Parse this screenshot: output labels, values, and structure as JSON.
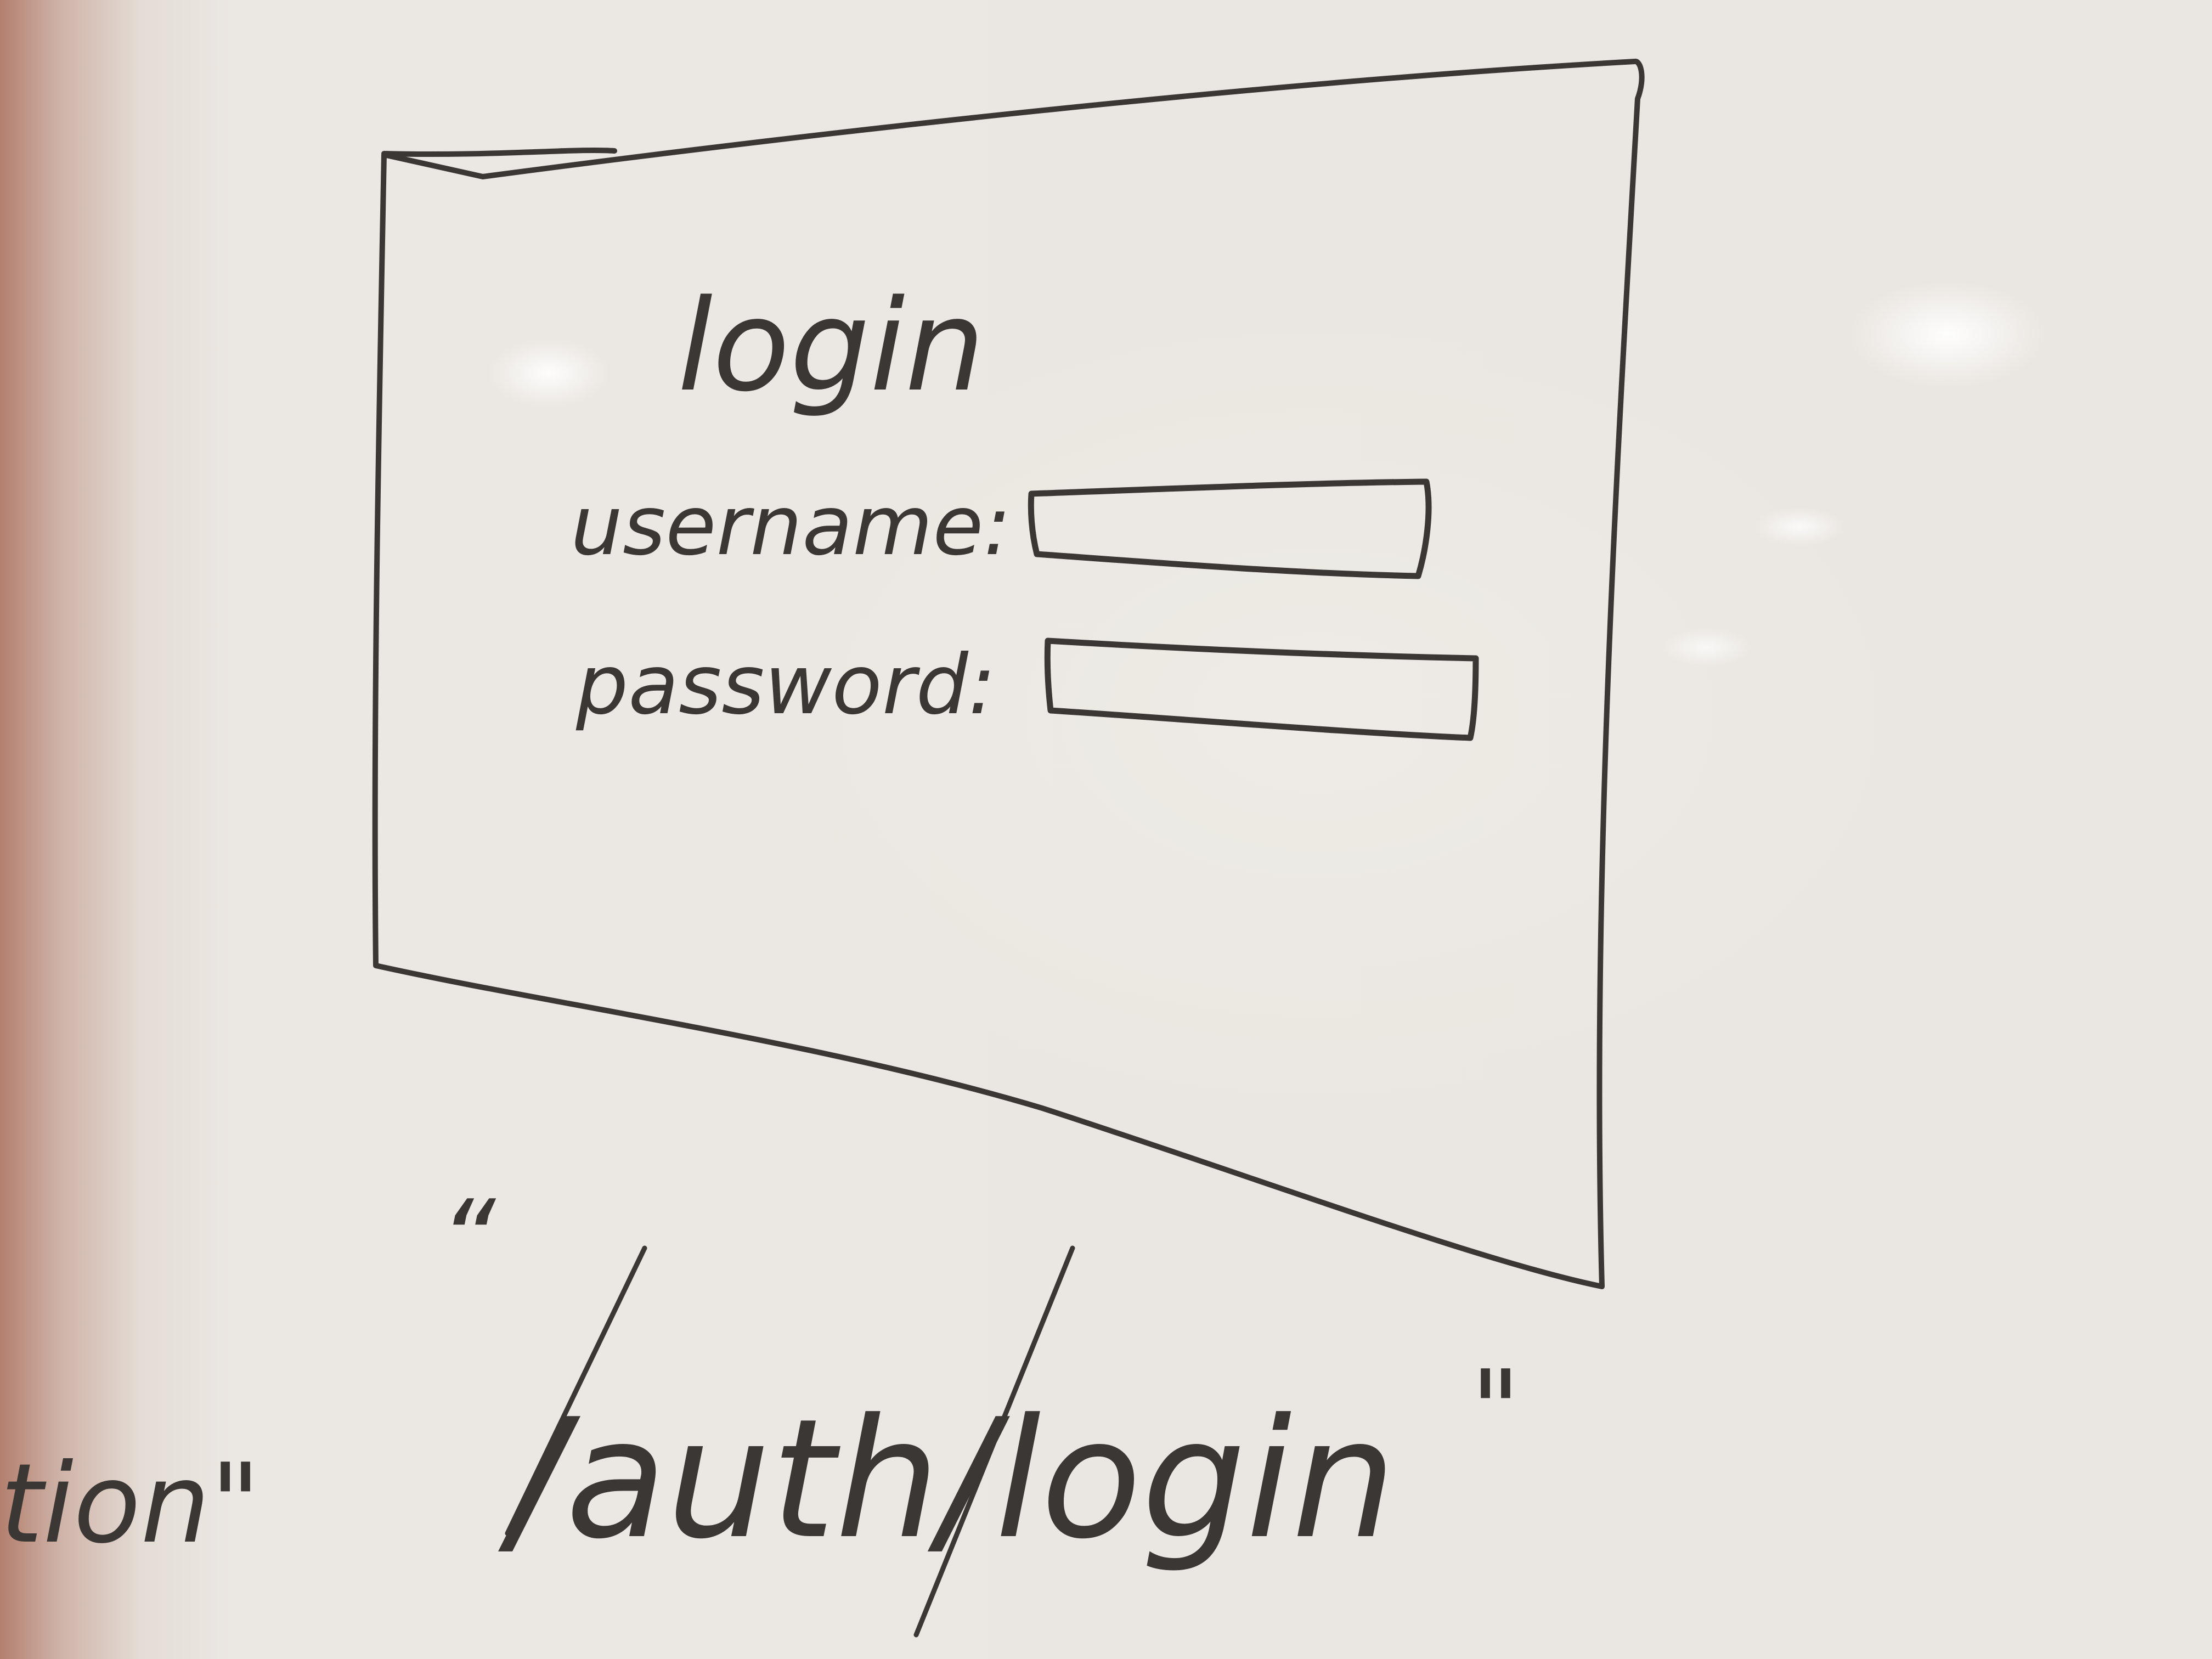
{
  "sketch": {
    "title": "login",
    "username_label": "username:",
    "password_label": "password:",
    "route_prefix_fragment": "tion\"",
    "route_open_quote": "“",
    "route_path": "/auth/login",
    "route_close_quote": "\""
  },
  "colors": {
    "marker_ink": "#3b3734",
    "whiteboard": "#ebe7e2"
  }
}
